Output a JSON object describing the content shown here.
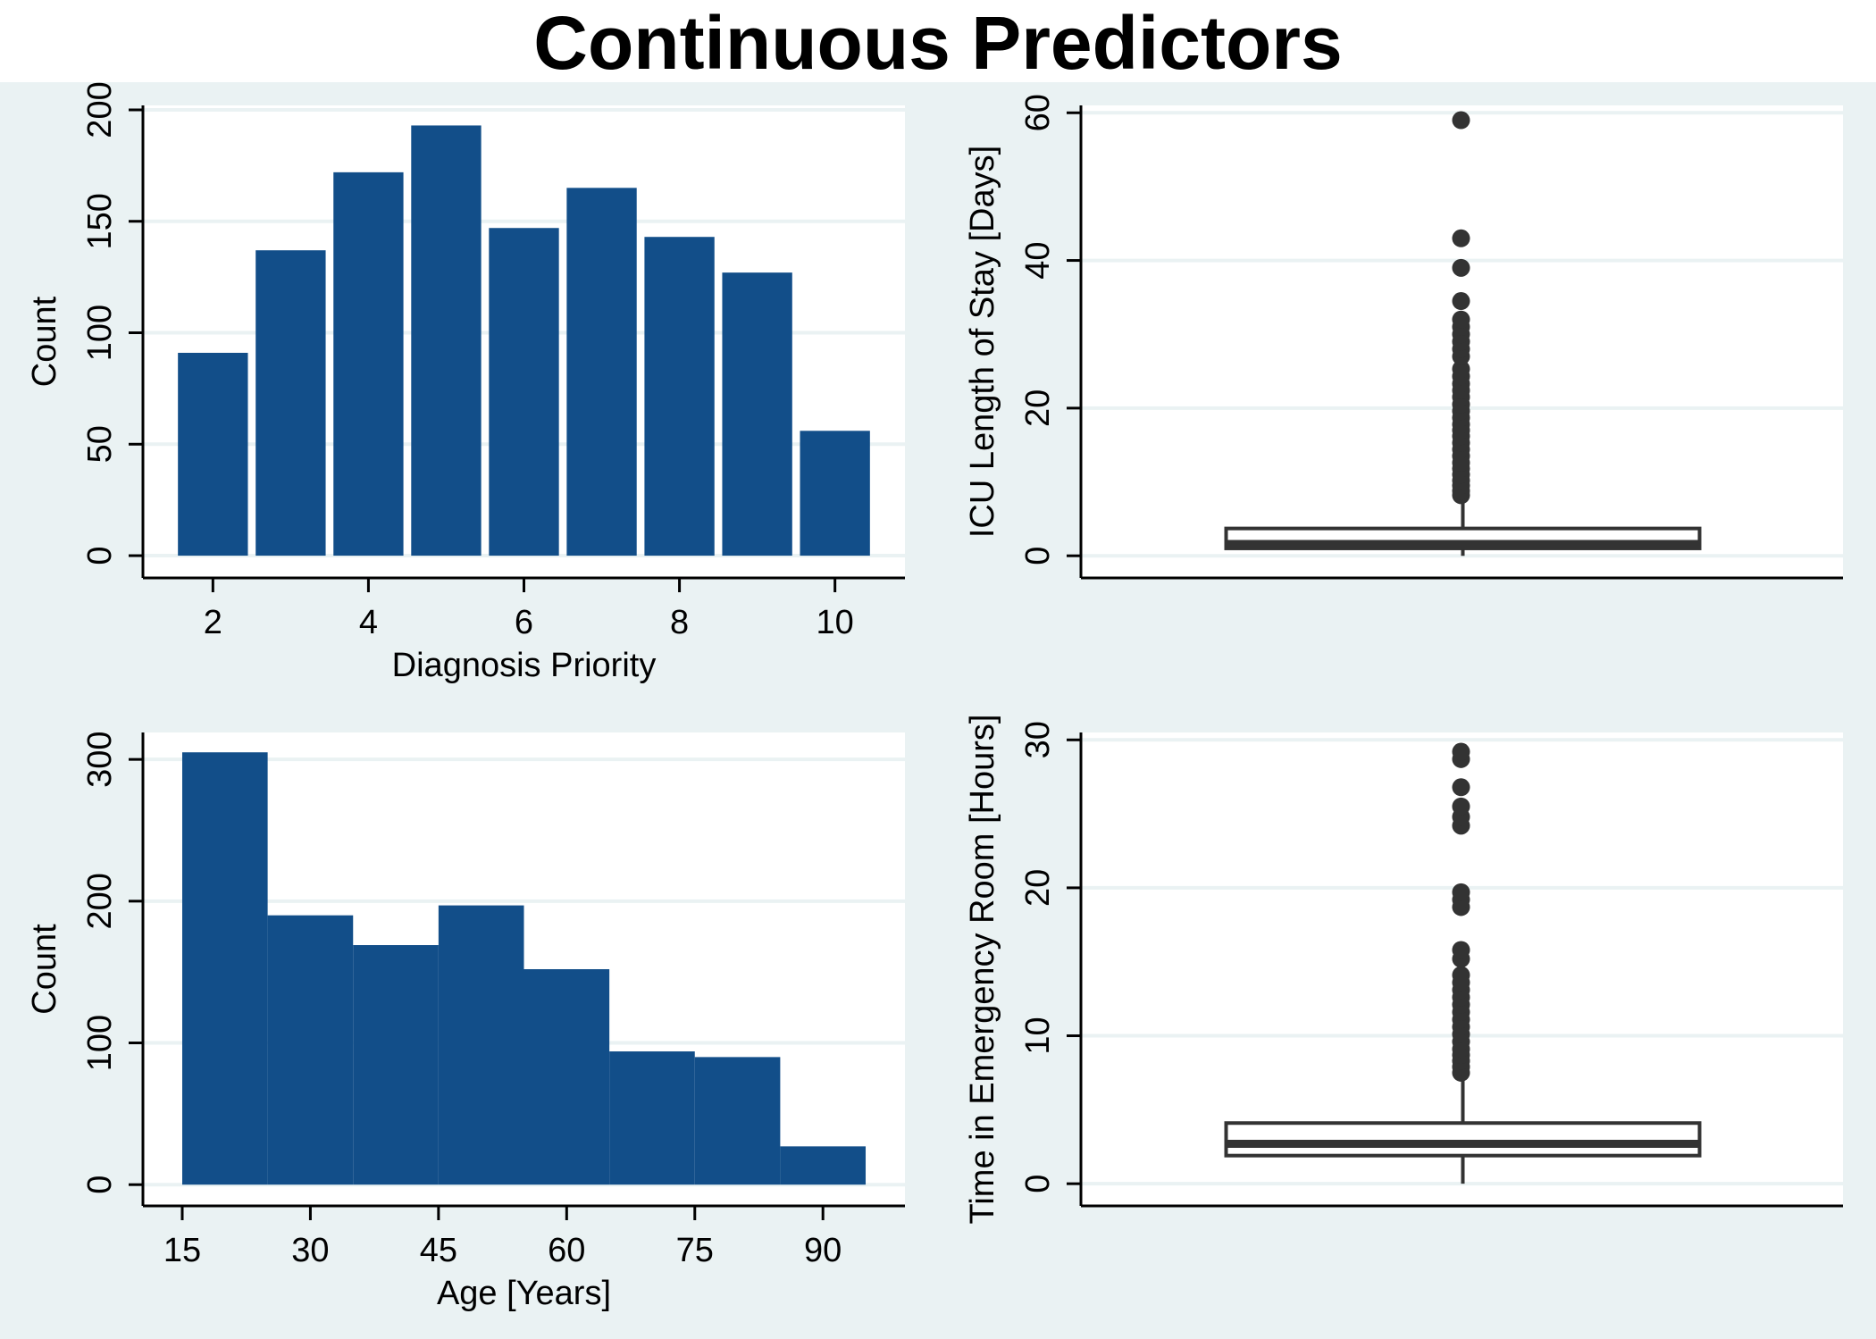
{
  "title": "Continuous Predictors",
  "colors": {
    "bar": "#124e89",
    "box": "#333333",
    "grid": "#eaf2f3",
    "panel_bg": "#ffffff",
    "outer_bg": "#eaf2f3"
  },
  "chart_data": [
    {
      "id": "diag",
      "type": "bar",
      "xlabel": "Diagnosis Priority",
      "ylabel": "Count",
      "xlim": [
        1.1,
        10.9
      ],
      "ylim": [
        -10,
        202
      ],
      "xticks": [
        2,
        4,
        6,
        8,
        10
      ],
      "yticks": [
        0,
        50,
        100,
        150,
        200
      ],
      "bar_width": 0.9,
      "categories": [
        2,
        3,
        4,
        5,
        6,
        7,
        8,
        9,
        10
      ],
      "values": [
        91,
        137,
        172,
        193,
        147,
        165,
        143,
        127,
        56
      ],
      "grid": true
    },
    {
      "id": "icu",
      "type": "box",
      "xlabel": "",
      "ylabel": "ICU Length of Stay [Days]",
      "ylim": [
        -3,
        61
      ],
      "yticks": [
        0,
        20,
        40,
        60
      ],
      "box": {
        "whisker_low": 0,
        "q1": 1,
        "median": 1.6,
        "q3": 3.7,
        "whisker_high": 8
      },
      "outliers": [
        8.2,
        8.8,
        9.5,
        10.2,
        11,
        11.8,
        12.6,
        13.5,
        14.4,
        15.3,
        16.2,
        17,
        17.8,
        18.7,
        19.6,
        20.5,
        21.5,
        22.4,
        23.3,
        24.3,
        25.3,
        27,
        28,
        29,
        30,
        31,
        32,
        34.5,
        39,
        43,
        59
      ],
      "grid": true
    },
    {
      "id": "age",
      "type": "bar",
      "xlabel": "Age [Years]",
      "ylabel": "Count",
      "xlim": [
        10.4,
        99.6
      ],
      "ylim": [
        -15,
        319
      ],
      "xticks": [
        15,
        30,
        45,
        60,
        75,
        90
      ],
      "yticks": [
        0,
        100,
        200,
        300
      ],
      "bins": [
        [
          15,
          25
        ],
        [
          25,
          35
        ],
        [
          35,
          45
        ],
        [
          45,
          55
        ],
        [
          55,
          65
        ],
        [
          65,
          75
        ],
        [
          75,
          85
        ],
        [
          85,
          95
        ]
      ],
      "values": [
        305,
        190,
        169,
        197,
        152,
        94,
        90,
        27
      ],
      "grid": true
    },
    {
      "id": "er",
      "type": "box",
      "xlabel": "",
      "ylabel": "Time in Emergency Room [Hours]",
      "ylim": [
        -1.5,
        30.5
      ],
      "yticks": [
        0,
        10,
        20,
        30
      ],
      "box": {
        "whisker_low": 0,
        "q1": 1.9,
        "median": 2.7,
        "q3": 4.1,
        "whisker_high": 7.4
      },
      "outliers": [
        7.5,
        7.9,
        8.3,
        8.7,
        9.1,
        9.6,
        10.1,
        10.6,
        11.1,
        11.6,
        12.1,
        12.6,
        13.1,
        13.6,
        14.1,
        15.2,
        15.8,
        18.7,
        19.2,
        19.7,
        24.2,
        24.8,
        25.5,
        26.8,
        28.7,
        29.2
      ],
      "grid": true
    }
  ]
}
